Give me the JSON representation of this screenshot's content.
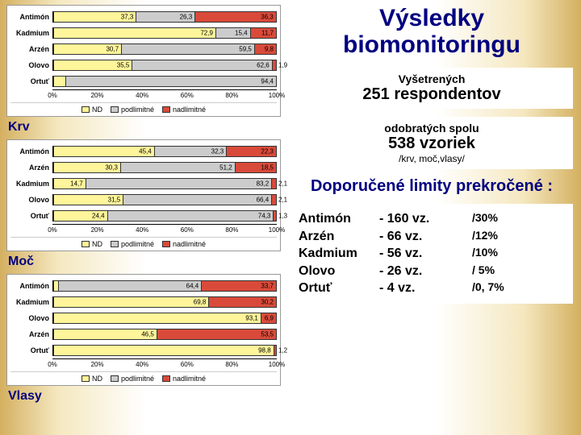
{
  "title": "Výsledky biomonitoringu",
  "colors": {
    "nd": "#fff59a",
    "podlimit": "#cccccc",
    "nadlimit": "#d94a3a",
    "bg": "#ffffff",
    "navy": "#000080"
  },
  "axis": {
    "ticks": [
      0,
      20,
      40,
      60,
      80,
      100
    ],
    "labels": [
      "0%",
      "20%",
      "40%",
      "60%",
      "80%",
      "100%"
    ]
  },
  "legend": [
    {
      "label": "ND",
      "color": "#fff59a"
    },
    {
      "label": "podlimitné",
      "color": "#cccccc"
    },
    {
      "label": "nadlimitné",
      "color": "#d94a3a"
    }
  ],
  "panels": [
    {
      "name": "Krv",
      "rows": [
        {
          "label": "Antimón",
          "vals": [
            37.3,
            26.3,
            36.3
          ]
        },
        {
          "label": "Kadmium",
          "vals": [
            72.9,
            15.4,
            11.7
          ]
        },
        {
          "label": "Arzén",
          "vals": [
            30.7,
            59.5,
            9.8
          ]
        },
        {
          "label": "Olovo",
          "vals": [
            35.5,
            62.6,
            1.9
          ]
        },
        {
          "label": "Ortuť",
          "vals": [
            5.6,
            94.4,
            0.0
          ]
        }
      ]
    },
    {
      "name": "Moč",
      "rows": [
        {
          "label": "Antimón",
          "vals": [
            45.4,
            32.3,
            22.3
          ]
        },
        {
          "label": "Arzén",
          "vals": [
            30.3,
            51.2,
            18.5
          ]
        },
        {
          "label": "Kadmium",
          "vals": [
            14.7,
            83.2,
            2.1
          ]
        },
        {
          "label": "Olovo",
          "vals": [
            31.5,
            66.4,
            2.1
          ]
        },
        {
          "label": "Ortuť",
          "vals": [
            24.4,
            74.3,
            1.3
          ]
        }
      ]
    },
    {
      "name": "Vlasy",
      "rows": [
        {
          "label": "Antimón",
          "vals": [
            2.5,
            64.4,
            33.7
          ]
        },
        {
          "label": "Kadmium",
          "vals": [
            69.8,
            0,
            30.2
          ]
        },
        {
          "label": "Olovo",
          "vals": [
            93.1,
            0,
            6.9
          ]
        },
        {
          "label": "Arzén",
          "vals": [
            46.5,
            0,
            53.5
          ]
        },
        {
          "label": "Ortuť",
          "vals": [
            98.8,
            0,
            1.2
          ]
        }
      ]
    }
  ],
  "info1": {
    "small": "Vyšetrených",
    "big": "251 respondentov"
  },
  "info2": {
    "small": "odobratých spolu",
    "big": "538 vzoriek",
    "note": "/krv, moč,vlasy/"
  },
  "limits_title": "Doporučené limity prekročené :",
  "limits": [
    {
      "name": "Antimón",
      "vz": "- 160 vz.",
      "pct": "/30%"
    },
    {
      "name": "Arzén",
      "vz": "-   66 vz.",
      "pct": "/12%"
    },
    {
      "name": "Kadmium",
      "vz": "-   56 vz.",
      "pct": "/10%"
    },
    {
      "name": "Olovo",
      "vz": "-   26 vz.",
      "pct": "/ 5%"
    },
    {
      "name": "Ortuť",
      "vz": "-     4 vz.",
      "pct": "/0, 7%"
    }
  ]
}
